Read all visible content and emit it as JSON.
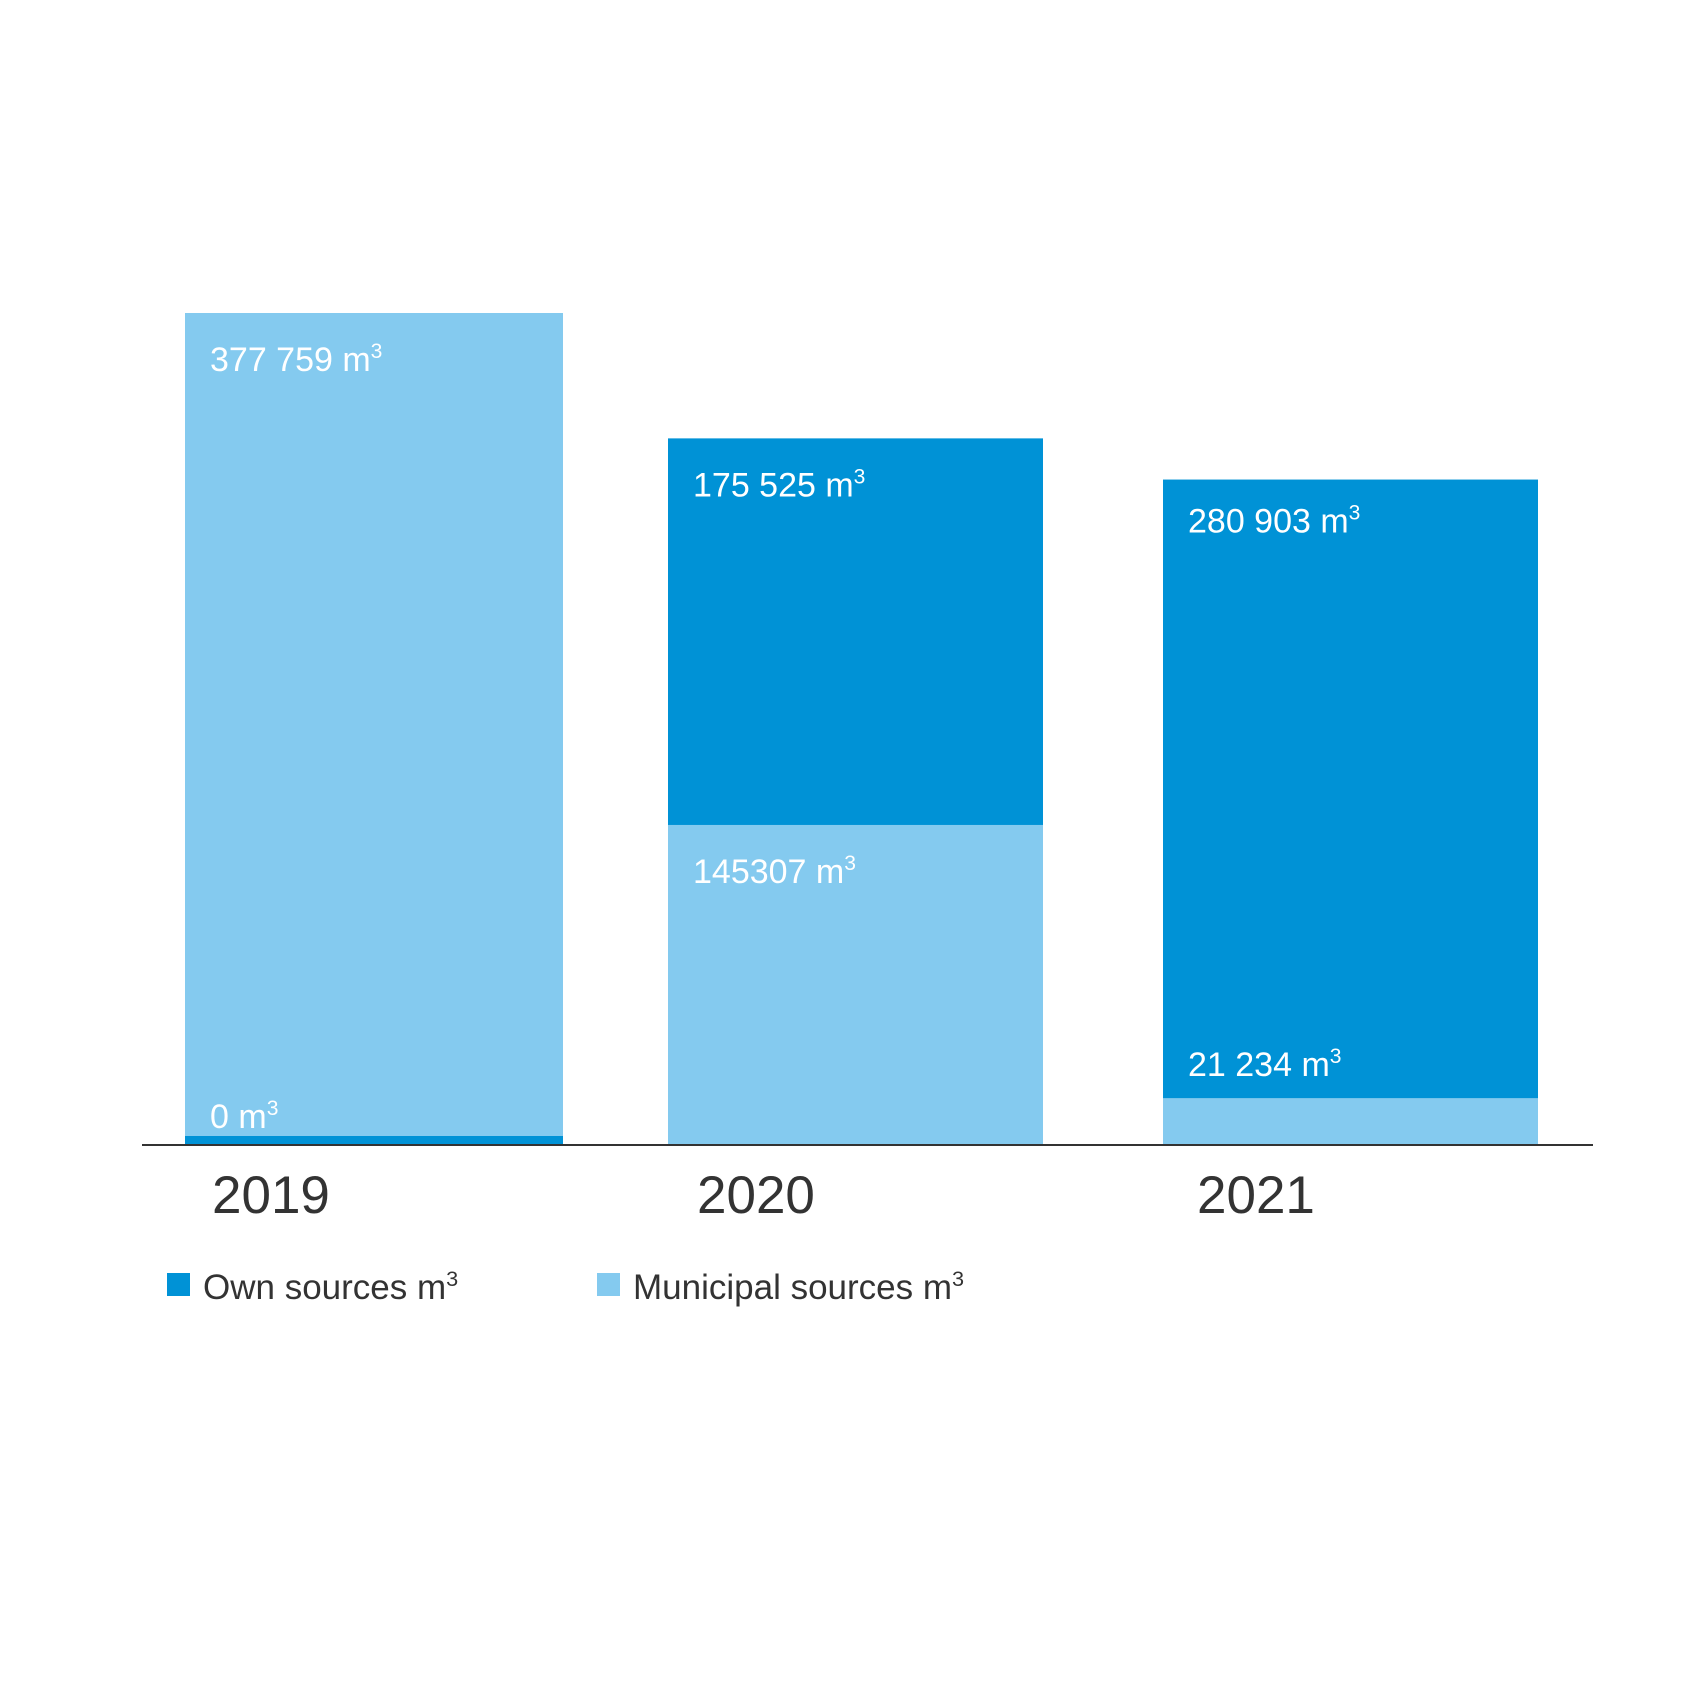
{
  "chart_data": {
    "type": "bar",
    "stacked": true,
    "categories": [
      "2019",
      "2020",
      "2021"
    ],
    "series": [
      {
        "name": "Own sources m³",
        "color": "#0092d6",
        "values": [
          0,
          175525,
          280903
        ],
        "data_labels": [
          "0 m³",
          "175 525 m³",
          "280 903 m³"
        ]
      },
      {
        "name": "Municipal sources m³",
        "color": "#84caef",
        "values": [
          377759,
          145307,
          21234
        ],
        "data_labels": [
          "377 759 m³",
          "145307 m³",
          "21 234 m³"
        ]
      }
    ],
    "ylim": [
      0,
      377759
    ],
    "grid": false,
    "legend_position": "bottom-left",
    "axis_color": "#333333",
    "label_text_color": "#ffffff",
    "tick_text_color": "#333333"
  }
}
